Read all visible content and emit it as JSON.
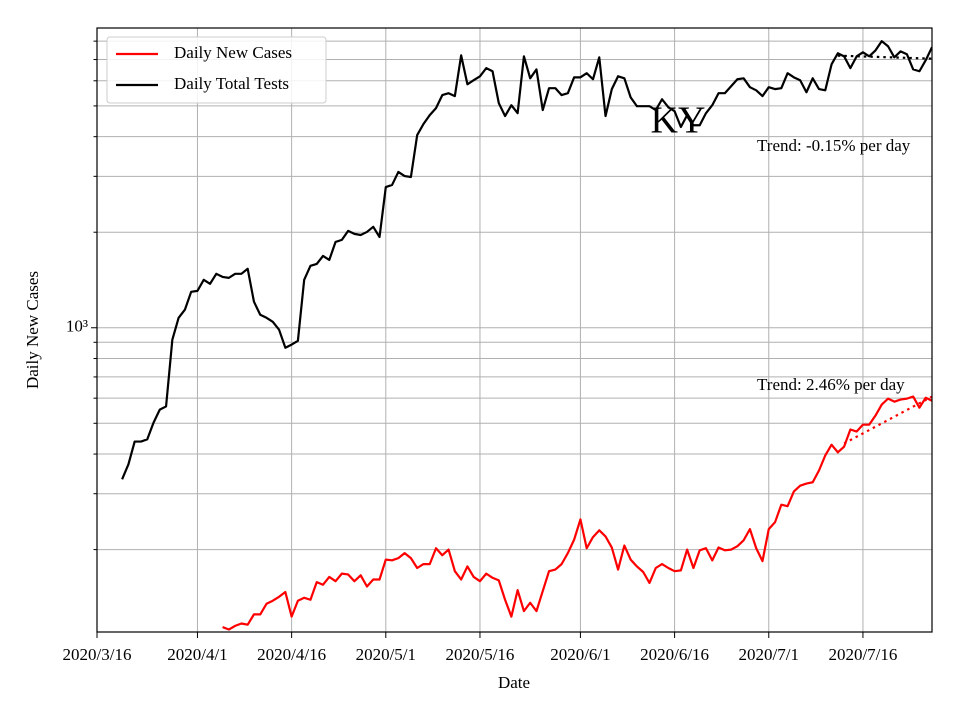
{
  "chart_data": {
    "type": "line",
    "xlabel": "Date",
    "ylabel": "Daily New Cases",
    "annotations": [
      "KY",
      "Trend: -0.15% per day",
      "Trend: 2.46% per day"
    ],
    "log_y": true,
    "grid": true,
    "legend": "upper left",
    "xlim": [
      "2020-03-16",
      "2020-07-27"
    ],
    "xticks": [
      {
        "value": "2020-03-16",
        "label": "2020/3/16"
      },
      {
        "value": "2020-04-01",
        "label": "2020/4/1"
      },
      {
        "value": "2020-04-16",
        "label": "2020/4/16"
      },
      {
        "value": "2020-05-01",
        "label": "2020/5/1"
      },
      {
        "value": "2020-05-16",
        "label": "2020/5/16"
      },
      {
        "value": "2020-06-01",
        "label": "2020/6/1"
      },
      {
        "value": "2020-06-16",
        "label": "2020/6/16"
      },
      {
        "value": "2020-07-01",
        "label": "2020/7/1"
      },
      {
        "value": "2020-07-16",
        "label": "2020/7/16"
      }
    ],
    "ylim": [
      110,
      8800
    ],
    "yticks": [
      {
        "value": 1000,
        "label": "10³"
      }
    ],
    "yticks_minor": [
      200,
      300,
      400,
      500,
      600,
      700,
      800,
      900,
      2000,
      3000,
      4000,
      5000,
      6000,
      7000,
      8000
    ],
    "x": [
      "2020-03-20",
      "2020-03-21",
      "2020-03-22",
      "2020-03-23",
      "2020-03-24",
      "2020-03-25",
      "2020-03-26",
      "2020-03-27",
      "2020-03-28",
      "2020-03-29",
      "2020-03-30",
      "2020-03-31",
      "2020-04-01",
      "2020-04-02",
      "2020-04-03",
      "2020-04-04",
      "2020-04-05",
      "2020-04-06",
      "2020-04-07",
      "2020-04-08",
      "2020-04-09",
      "2020-04-10",
      "2020-04-11",
      "2020-04-12",
      "2020-04-13",
      "2020-04-14",
      "2020-04-15",
      "2020-04-16",
      "2020-04-17",
      "2020-04-18",
      "2020-04-19",
      "2020-04-20",
      "2020-04-21",
      "2020-04-22",
      "2020-04-23",
      "2020-04-24",
      "2020-04-25",
      "2020-04-26",
      "2020-04-27",
      "2020-04-28",
      "2020-04-29",
      "2020-04-30",
      "2020-05-01",
      "2020-05-02",
      "2020-05-03",
      "2020-05-04",
      "2020-05-05",
      "2020-05-06",
      "2020-05-07",
      "2020-05-08",
      "2020-05-09",
      "2020-05-10",
      "2020-05-11",
      "2020-05-12",
      "2020-05-13",
      "2020-05-14",
      "2020-05-15",
      "2020-05-16",
      "2020-05-17",
      "2020-05-18",
      "2020-05-19",
      "2020-05-20",
      "2020-05-21",
      "2020-05-22",
      "2020-05-23",
      "2020-05-24",
      "2020-05-25",
      "2020-05-26",
      "2020-05-27",
      "2020-05-28",
      "2020-05-29",
      "2020-05-30",
      "2020-05-31",
      "2020-06-01",
      "2020-06-02",
      "2020-06-03",
      "2020-06-04",
      "2020-06-05",
      "2020-06-06",
      "2020-06-07",
      "2020-06-08",
      "2020-06-09",
      "2020-06-10",
      "2020-06-11",
      "2020-06-12",
      "2020-06-13",
      "2020-06-14",
      "2020-06-15",
      "2020-06-16",
      "2020-06-17",
      "2020-06-18",
      "2020-06-19",
      "2020-06-20",
      "2020-06-21",
      "2020-06-22",
      "2020-06-23",
      "2020-06-24",
      "2020-06-25",
      "2020-06-26",
      "2020-06-27",
      "2020-06-28",
      "2020-06-29",
      "2020-06-30",
      "2020-07-01",
      "2020-07-02",
      "2020-07-03",
      "2020-07-04",
      "2020-07-05",
      "2020-07-06",
      "2020-07-07",
      "2020-07-08",
      "2020-07-09",
      "2020-07-10",
      "2020-07-11",
      "2020-07-12",
      "2020-07-13",
      "2020-07-14",
      "2020-07-15",
      "2020-07-16",
      "2020-07-17",
      "2020-07-18",
      "2020-07-19",
      "2020-07-20",
      "2020-07-21",
      "2020-07-22",
      "2020-07-23",
      "2020-07-24",
      "2020-07-25",
      "2020-07-26",
      "2020-07-27"
    ],
    "series": [
      {
        "name": "Daily New Cases",
        "color": "#ff0000",
        "values": [
          null,
          null,
          null,
          null,
          null,
          null,
          null,
          null,
          null,
          null,
          null,
          null,
          null,
          null,
          null,
          null,
          114,
          112,
          115,
          117,
          116,
          125,
          125,
          135,
          138,
          142,
          147,
          123,
          138,
          141,
          139,
          158,
          155,
          164,
          159,
          168,
          167,
          159,
          166,
          153,
          161,
          161,
          186,
          185,
          188,
          195,
          188,
          175,
          180,
          180,
          202,
          192,
          200,
          171,
          161,
          177,
          164,
          159,
          168,
          163,
          160,
          139,
          123,
          149,
          128,
          136,
          128,
          148,
          171,
          173,
          180,
          195,
          215,
          249,
          202,
          219,
          230,
          220,
          203,
          173,
          206,
          186,
          177,
          170,
          157,
          175,
          180,
          175,
          171,
          172,
          200,
          175,
          199,
          202,
          185,
          203,
          199,
          200,
          205,
          214,
          232,
          202,
          184,
          232,
          244,
          277,
          274,
          305,
          318,
          323,
          326,
          355,
          396,
          428,
          405,
          422,
          478,
          471,
          495,
          495,
          529,
          573,
          598,
          585,
          594,
          598,
          607,
          560,
          602,
          589
        ]
      },
      {
        "name": "Daily Total Tests",
        "color": "#000000",
        "values": [
          333,
          371,
          438,
          438,
          445,
          502,
          552,
          565,
          917,
          1075,
          1140,
          1298,
          1307,
          1416,
          1375,
          1479,
          1446,
          1436,
          1479,
          1479,
          1534,
          1208,
          1099,
          1075,
          1044,
          986,
          865,
          885,
          910,
          1416,
          1567,
          1589,
          1684,
          1636,
          1864,
          1892,
          2019,
          1976,
          1960,
          2004,
          2080,
          1932,
          2775,
          2818,
          3097,
          3006,
          2985,
          4046,
          4385,
          4677,
          4920,
          5408,
          5483,
          5370,
          7215,
          5850,
          6025,
          6199,
          6577,
          6430,
          5103,
          4645,
          5025,
          4744,
          7164,
          6109,
          6518,
          4853,
          5687,
          5687,
          5408,
          5483,
          6152,
          6152,
          6339,
          6067,
          7112,
          4645,
          5649,
          6199,
          6109,
          5320,
          4990,
          4990,
          4990,
          4853,
          5248,
          4955,
          4811,
          4290,
          4677,
          4345,
          4345,
          4744,
          5025,
          5483,
          5483,
          5768,
          6067,
          6109,
          5728,
          5600,
          5370,
          5728,
          5649,
          5687,
          6339,
          6152,
          6025,
          5521,
          6109,
          5649,
          5600,
          6761,
          7328,
          7164,
          6577,
          7164,
          7379,
          7164,
          7480,
          7998,
          7709,
          7112,
          7430,
          7277,
          6518,
          6430,
          6966,
          7651
        ]
      }
    ],
    "trends": [
      {
        "color": "#000000",
        "style": "dotted",
        "x": [
          "2020-07-12",
          "2020-07-27"
        ],
        "values": [
          7200,
          7045
        ]
      },
      {
        "color": "#ff0000",
        "style": "dotted",
        "x": [
          "2020-07-13",
          "2020-07-27"
        ],
        "values": [
          432,
          607
        ]
      }
    ]
  }
}
